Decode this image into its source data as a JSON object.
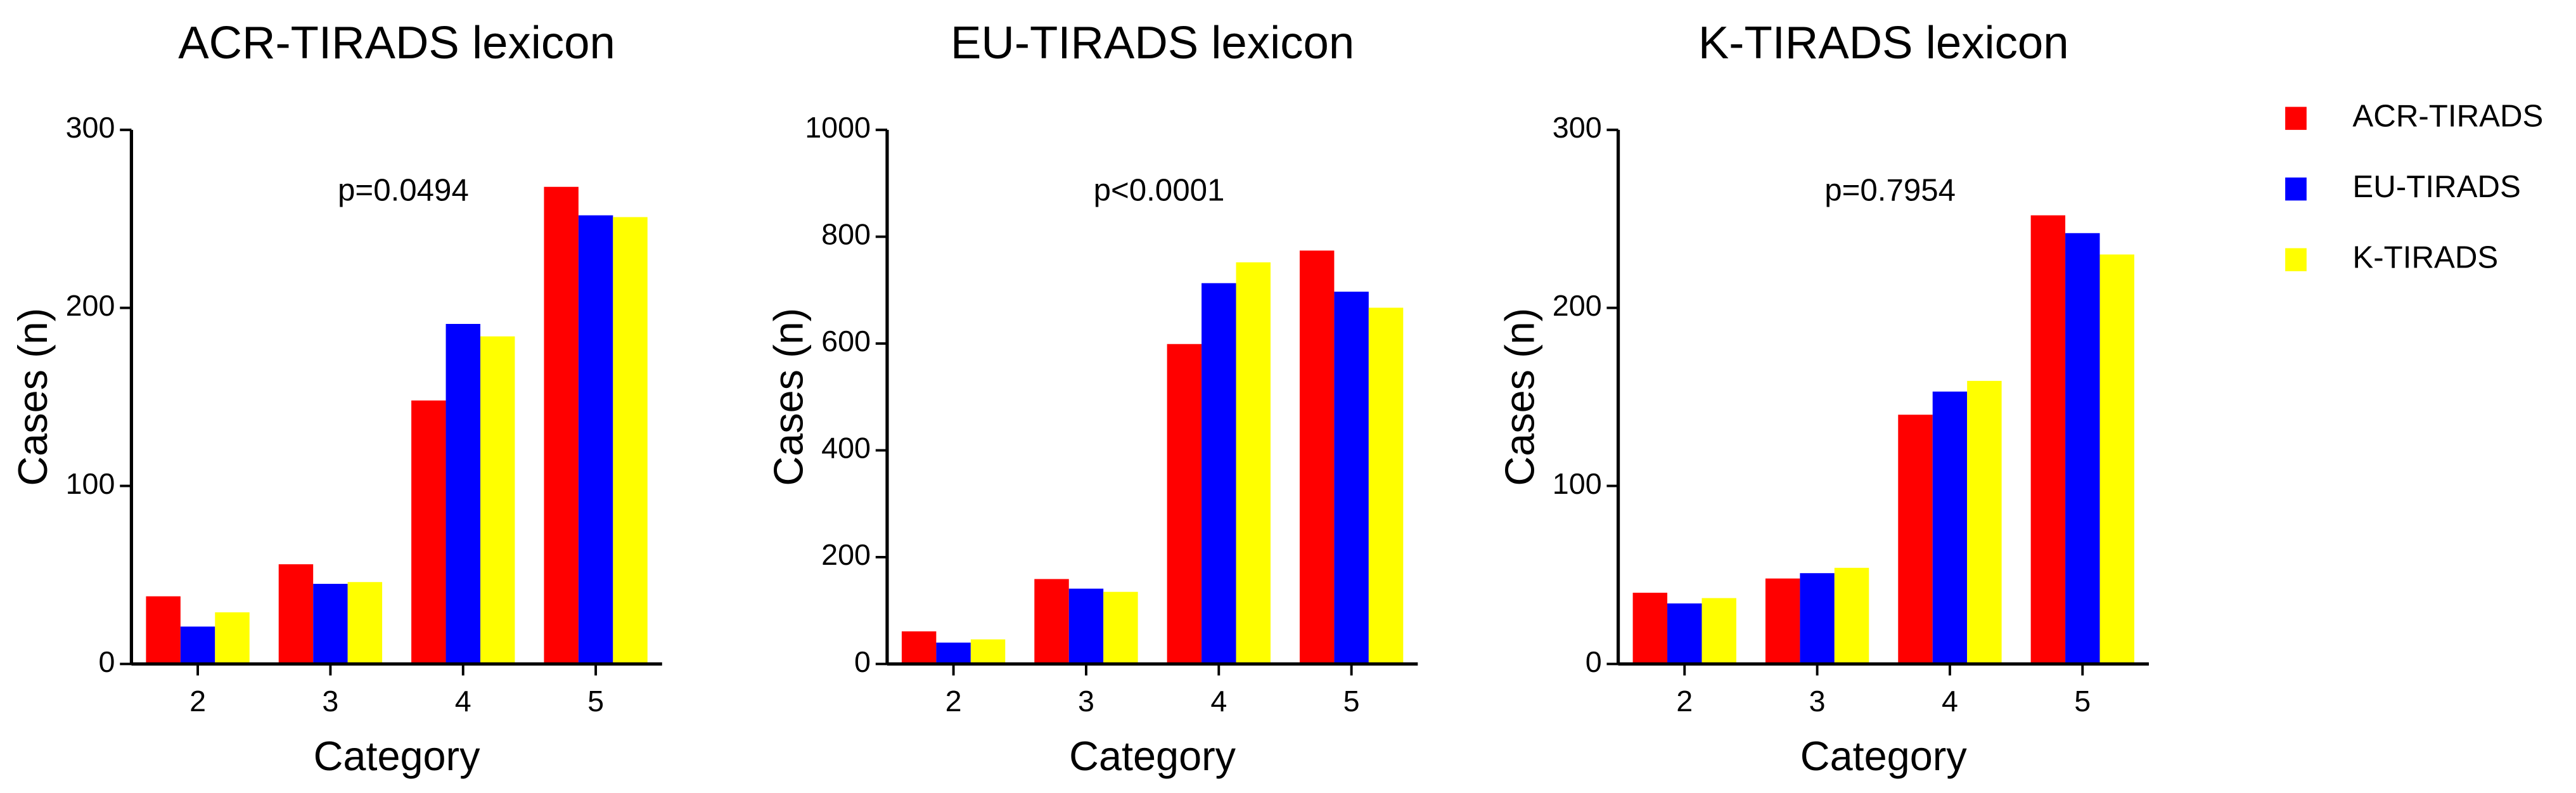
{
  "chart_data": [
    {
      "type": "bar",
      "title": "ACR-TIRADS lexicon",
      "annotation": "p=0.0494",
      "xlabel": "Category",
      "ylabel": "Cases (n)",
      "categories": [
        "2",
        "3",
        "4",
        "5"
      ],
      "series": [
        {
          "name": "ACR-TIRADS",
          "color": "#ff0000",
          "values": [
            38,
            56,
            148,
            268
          ]
        },
        {
          "name": "EU-TIRADS",
          "color": "#0000ff",
          "values": [
            21,
            45,
            191,
            252
          ]
        },
        {
          "name": "K-TIRADS",
          "color": "#ffff00",
          "values": [
            29,
            46,
            184,
            251
          ]
        }
      ],
      "ylim": [
        0,
        300
      ],
      "yticks": [
        0,
        100,
        200,
        300
      ],
      "legend": "right"
    },
    {
      "type": "bar",
      "title": "EU-TIRADS lexicon",
      "annotation": "p<0.0001",
      "xlabel": "Category",
      "ylabel": "Cases (n)",
      "categories": [
        "2",
        "3",
        "4",
        "5"
      ],
      "series": [
        {
          "color": "#ff0000",
          "values": [
            61,
            159,
            599,
            774
          ]
        },
        {
          "color": "#0000ff",
          "values": [
            40,
            141,
            713,
            697
          ]
        },
        {
          "color": "#ffff00",
          "values": [
            46,
            135,
            752,
            667
          ]
        }
      ],
      "ylim": [
        0,
        1000
      ],
      "yticks": [
        0,
        200,
        400,
        600,
        800,
        1000
      ]
    },
    {
      "type": "bar",
      "title": "K-TIRADS lexicon",
      "annotation": "p=0.7954",
      "xlabel": "Category",
      "ylabel": "Cases (n)",
      "categories": [
        "2",
        "3",
        "4",
        "5"
      ],
      "series": [
        {
          "color": "#ff0000",
          "values": [
            40,
            48,
            140,
            252
          ]
        },
        {
          "color": "#0000ff",
          "values": [
            34,
            51,
            153,
            242
          ]
        },
        {
          "color": "#ffff00",
          "values": [
            37,
            54,
            159,
            230
          ]
        }
      ],
      "ylim": [
        0,
        300
      ],
      "yticks": [
        0,
        100,
        200,
        300
      ]
    }
  ]
}
